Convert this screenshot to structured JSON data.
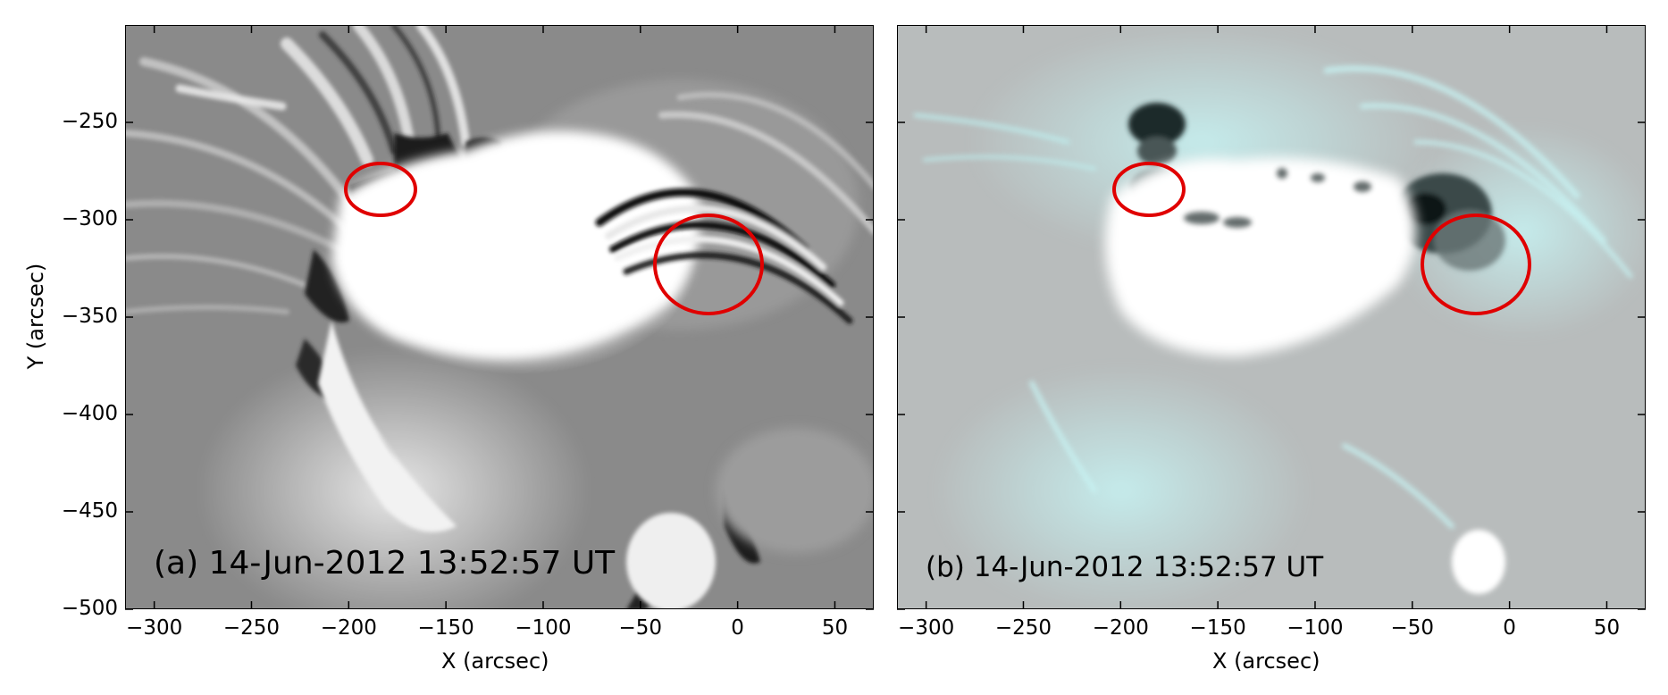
{
  "panels": [
    {
      "id": "a",
      "label": "(a) 14-Jun-2012 13:52:57 UT",
      "ylabel": "Y (arcsec)",
      "xlabel": "X (arcsec)",
      "xticks": [
        "−300",
        "−250",
        "−200",
        "−150",
        "−100",
        "−50",
        "0",
        "50"
      ],
      "yticks": [
        "−250",
        "−300",
        "−350",
        "−400",
        "−450",
        "−500"
      ],
      "style": "grayscale difference image",
      "circle_color": "#e00000"
    },
    {
      "id": "b",
      "label": "(b) 14-Jun-2012 13:52:57 UT",
      "xlabel": "X (arcsec)",
      "xticks": [
        "−300",
        "−250",
        "−200",
        "−150",
        "−100",
        "−50",
        "0",
        "50"
      ],
      "style": "cyan-tinted intensity image",
      "circle_color": "#e00000"
    }
  ],
  "axes": {
    "x_range": [
      -315,
      70
    ],
    "y_range": [
      -500,
      -200
    ]
  }
}
